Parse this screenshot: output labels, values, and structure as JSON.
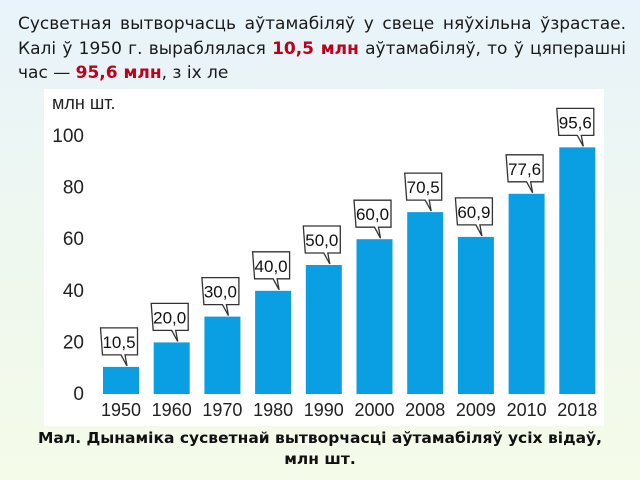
{
  "intro": {
    "part1": "Сусветная вытворчасць аўтамабіляў у свеце няўхільна ўзрастае. Калі ў 1950 г. выраблялася ",
    "hl1": "10,5 млн",
    "part2": " аўтамабіляў, то ў цяперашні час — ",
    "hl2": "95,6 млн",
    "part3": ", з іх ле"
  },
  "caption": "Мал. Дынаміка сусветнай вытворчасці аўтамабіляў усіх відаў, млн шт.",
  "colors": {
    "bar": "#0a9fe2",
    "highlight": "#c0001a",
    "text": "#1a1a1a"
  },
  "chart_data": {
    "type": "bar",
    "unit_label": "млн шт.",
    "categories": [
      "1950",
      "1960",
      "1970",
      "1980",
      "1990",
      "2000",
      "2008",
      "2009",
      "2010",
      "2018"
    ],
    "values": [
      10.5,
      20.0,
      30.0,
      40.0,
      50.0,
      60.0,
      70.5,
      60.9,
      77.6,
      95.6
    ],
    "value_labels": [
      "10,5",
      "20,0",
      "30,0",
      "40,0",
      "50,0",
      "60,0",
      "70,5",
      "60,9",
      "77,6",
      "95,6"
    ],
    "y_ticks": [
      "0",
      "20",
      "40",
      "60",
      "80",
      "100"
    ],
    "ylim": [
      0,
      100
    ],
    "grid": false,
    "legend": "none"
  }
}
